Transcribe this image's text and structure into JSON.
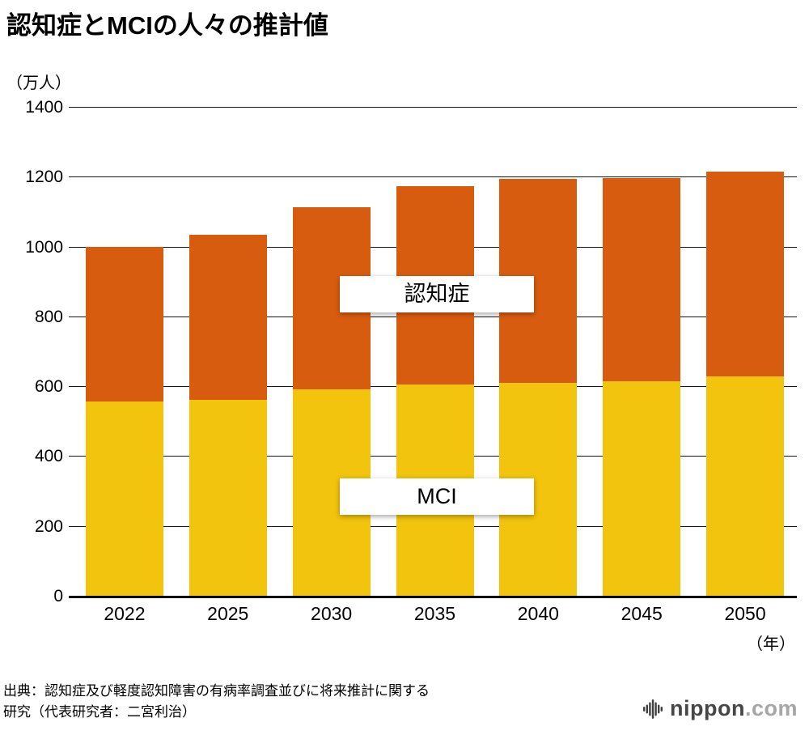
{
  "title": "認知症とMCIの人々の推計値",
  "labels": {
    "dementia": "認知症",
    "mci": "MCI"
  },
  "source": {
    "line1": "出典：認知症及び軽度認知障害の有病率調査並びに将来推計に関する",
    "line2": "研究（代表研究者：二宮利治）"
  },
  "logo": {
    "name": "nippon",
    "tld": ".com"
  },
  "colors": {
    "mci": "#f2c40e",
    "dementia": "#d85c0f",
    "gridline": "#151515"
  },
  "chart_data": {
    "type": "bar",
    "stacked": true,
    "title": "認知症とMCIの人々の推計値",
    "ylabel": "（万人）",
    "xlabel": "（年）",
    "ylim": [
      0,
      1400
    ],
    "yticks": [
      0,
      200,
      400,
      600,
      800,
      1000,
      1200,
      1400
    ],
    "grid": true,
    "legend_position": "inline-labels-on-bars",
    "categories": [
      "2022",
      "2025",
      "2030",
      "2035",
      "2040",
      "2045",
      "2050"
    ],
    "series": [
      {
        "name": "MCI",
        "color": "#f2c40e",
        "values": [
          559,
          564,
          593,
          608,
          613,
          616,
          631
        ]
      },
      {
        "name": "認知症",
        "color": "#d85c0f",
        "values": [
          443,
          472,
          523,
          567,
          584,
          583,
          587
        ]
      }
    ],
    "totals": [
      1002,
      1036,
      1116,
      1175,
      1197,
      1199,
      1218
    ]
  }
}
